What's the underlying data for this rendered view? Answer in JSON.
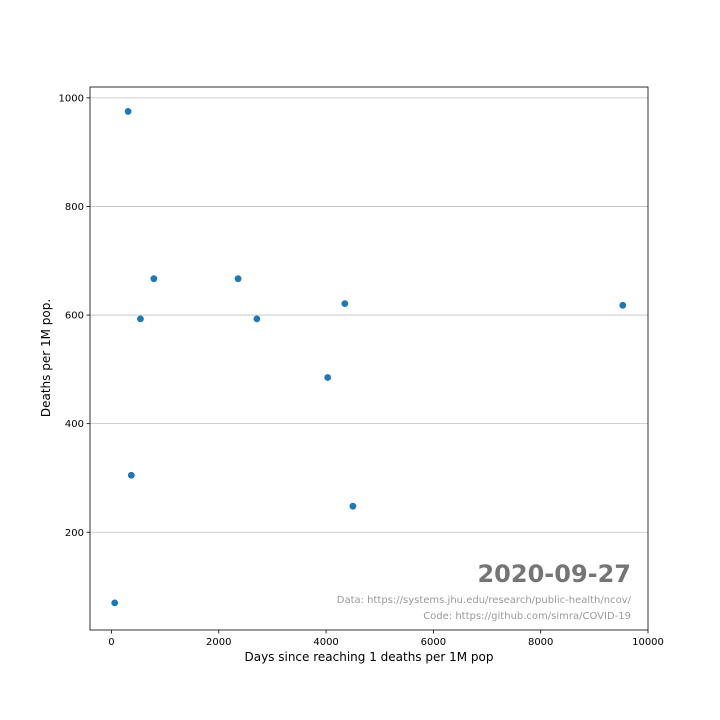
{
  "chart_data": {
    "type": "scatter",
    "title": "",
    "xlabel": "Days since reaching 1 deaths per 1M pop",
    "ylabel": "Deaths per 1M pop.",
    "xlim": [
      -400,
      10000
    ],
    "ylim": [
      20,
      1020
    ],
    "xticks": [
      0,
      2000,
      4000,
      6000,
      8000,
      10000
    ],
    "xtick_labels": [
      "0",
      "2000",
      "4000",
      "6000",
      "8000",
      "10000"
    ],
    "yticks": [
      200,
      400,
      600,
      800,
      1000
    ],
    "ytick_labels": [
      "200",
      "400",
      "600",
      "800",
      "1000"
    ],
    "grid": "horizontal",
    "marker_color": "#1f77b4",
    "gridline_color": "#c0c0c0",
    "points": [
      {
        "x": 60,
        "y": 70
      },
      {
        "x": 310,
        "y": 975
      },
      {
        "x": 370,
        "y": 305
      },
      {
        "x": 540,
        "y": 593
      },
      {
        "x": 790,
        "y": 667
      },
      {
        "x": 2360,
        "y": 667
      },
      {
        "x": 2710,
        "y": 593
      },
      {
        "x": 4030,
        "y": 485
      },
      {
        "x": 4350,
        "y": 621
      },
      {
        "x": 4500,
        "y": 248
      },
      {
        "x": 9530,
        "y": 618
      }
    ],
    "annotations": {
      "date": "2020-09-27",
      "data_source": "Data: https://systems.jhu.edu/research/public-health/ncov/",
      "code_source": "Code: https://github.com/simra/COVID-19"
    }
  }
}
